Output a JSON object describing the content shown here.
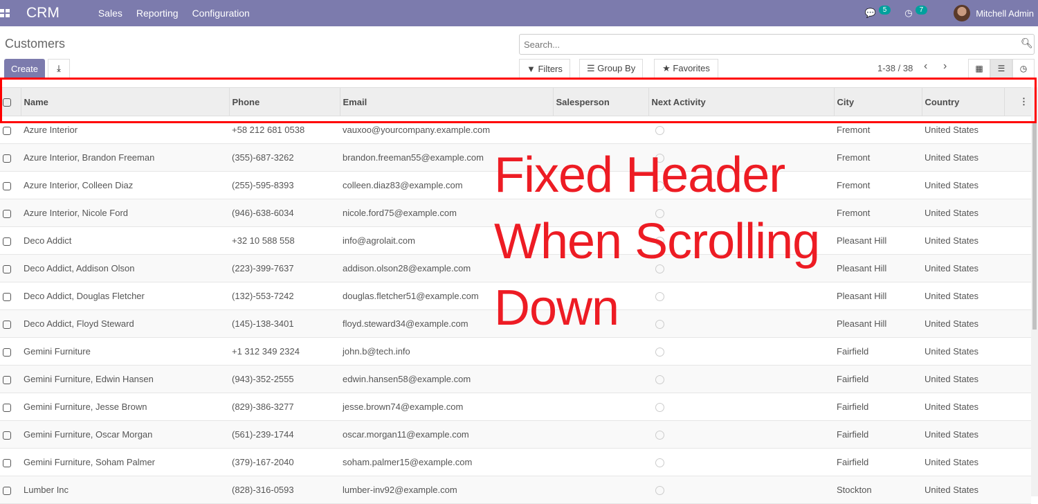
{
  "nav": {
    "brand": "CRM",
    "menus": [
      "Sales",
      "Reporting",
      "Configuration"
    ],
    "messages_count": "5",
    "activities_count": "7",
    "user": "Mitchell Admin"
  },
  "page": {
    "title": "Customers",
    "create_label": "Create",
    "search_placeholder": "Search...",
    "filters": "Filters",
    "group_by": "Group By",
    "favorites": "Favorites",
    "pager": "1-38 / 38"
  },
  "table": {
    "columns": [
      "Name",
      "Phone",
      "Email",
      "Salesperson",
      "Next Activity",
      "City",
      "Country"
    ],
    "rows": [
      [
        "Azure Interior",
        "+58 212 681 0538",
        "vauxoo@yourcompany.example.com",
        "",
        "",
        "Fremont",
        "United States"
      ],
      [
        "Azure Interior, Brandon Freeman",
        "(355)-687-3262",
        "brandon.freeman55@example.com",
        "",
        "",
        "Fremont",
        "United States"
      ],
      [
        "Azure Interior, Colleen Diaz",
        "(255)-595-8393",
        "colleen.diaz83@example.com",
        "",
        "",
        "Fremont",
        "United States"
      ],
      [
        "Azure Interior, Nicole Ford",
        "(946)-638-6034",
        "nicole.ford75@example.com",
        "",
        "",
        "Fremont",
        "United States"
      ],
      [
        "Deco Addict",
        "+32 10 588 558",
        "info@agrolait.com",
        "",
        "",
        "Pleasant Hill",
        "United States"
      ],
      [
        "Deco Addict, Addison Olson",
        "(223)-399-7637",
        "addison.olson28@example.com",
        "",
        "",
        "Pleasant Hill",
        "United States"
      ],
      [
        "Deco Addict, Douglas Fletcher",
        "(132)-553-7242",
        "douglas.fletcher51@example.com",
        "",
        "",
        "Pleasant Hill",
        "United States"
      ],
      [
        "Deco Addict, Floyd Steward",
        "(145)-138-3401",
        "floyd.steward34@example.com",
        "",
        "",
        "Pleasant Hill",
        "United States"
      ],
      [
        "Gemini Furniture",
        "+1 312 349 2324",
        "john.b@tech.info",
        "",
        "",
        "Fairfield",
        "United States"
      ],
      [
        "Gemini Furniture, Edwin Hansen",
        "(943)-352-2555",
        "edwin.hansen58@example.com",
        "",
        "",
        "Fairfield",
        "United States"
      ],
      [
        "Gemini Furniture, Jesse Brown",
        "(829)-386-3277",
        "jesse.brown74@example.com",
        "",
        "",
        "Fairfield",
        "United States"
      ],
      [
        "Gemini Furniture, Oscar Morgan",
        "(561)-239-1744",
        "oscar.morgan11@example.com",
        "",
        "",
        "Fairfield",
        "United States"
      ],
      [
        "Gemini Furniture, Soham Palmer",
        "(379)-167-2040",
        "soham.palmer15@example.com",
        "",
        "",
        "Fairfield",
        "United States"
      ],
      [
        "Lumber Inc",
        "(828)-316-0593",
        "lumber-inv92@example.com",
        "",
        "",
        "Stockton",
        "United States"
      ]
    ]
  },
  "annotation": {
    "lines": [
      "Fixed Header",
      "When Scrolling",
      "Down"
    ],
    "color": "#ed1c24"
  },
  "colors": {
    "navbar": "#7c7bad",
    "badge": "#00a09d",
    "highlight": "#ff0000"
  }
}
